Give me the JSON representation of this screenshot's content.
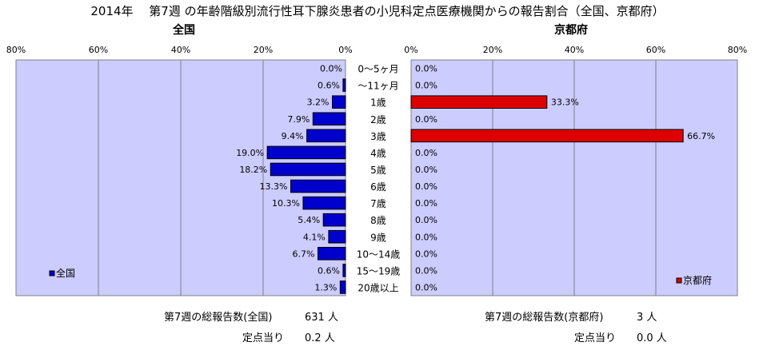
{
  "title": "2014年　 第7週 の年齢階級別流行性耳下腺炎患者の小児科定点医療機関からの報告割合（全国、京都府）",
  "colors": {
    "plot_bg": "#ccccff",
    "national_bar": "#0000cc",
    "kyoto_bar": "#dd0000",
    "grid": "#808080"
  },
  "chart_data": [
    {
      "type": "bar",
      "orientation": "horizontal",
      "direction": "right-to-left",
      "title": "全国",
      "categories": [
        "0～5ヶ月",
        "～11ヶ月",
        "1歳",
        "2歳",
        "3歳",
        "4歳",
        "5歳",
        "6歳",
        "7歳",
        "8歳",
        "9歳",
        "10～14歳",
        "15～19歳",
        "20歳以上"
      ],
      "values": [
        0.0,
        0.6,
        3.2,
        7.9,
        9.4,
        19.0,
        18.2,
        13.3,
        10.3,
        5.4,
        4.1,
        6.7,
        0.6,
        1.3
      ],
      "value_labels": [
        "0.0%",
        "0.6%",
        "3.2%",
        "7.9%",
        "9.4%",
        "19.0%",
        "18.2%",
        "13.3%",
        "10.3%",
        "5.4%",
        "4.1%",
        "6.7%",
        "0.6%",
        "1.3%"
      ],
      "xlim": [
        0,
        80
      ],
      "ticks": [
        "80%",
        "60%",
        "40%",
        "20%",
        "0%"
      ],
      "legend": "全国",
      "legend_position": "bottom-left",
      "grid": true
    },
    {
      "type": "bar",
      "orientation": "horizontal",
      "direction": "left-to-right",
      "title": "京都府",
      "categories": [
        "0～5ヶ月",
        "～11ヶ月",
        "1歳",
        "2歳",
        "3歳",
        "4歳",
        "5歳",
        "6歳",
        "7歳",
        "8歳",
        "9歳",
        "10～14歳",
        "15～19歳",
        "20歳以上"
      ],
      "values": [
        0.0,
        0.0,
        33.3,
        0.0,
        66.7,
        0.0,
        0.0,
        0.0,
        0.0,
        0.0,
        0.0,
        0.0,
        0.0,
        0.0
      ],
      "value_labels": [
        "0.0%",
        "0.0%",
        "33.3%",
        "0.0%",
        "66.7%",
        "0.0%",
        "0.0%",
        "0.0%",
        "0.0%",
        "0.0%",
        "0.0%",
        "0.0%",
        "0.0%",
        "0.0%"
      ],
      "xlim": [
        0,
        80
      ],
      "ticks": [
        "0%",
        "20%",
        "40%",
        "60%",
        "80%"
      ],
      "legend": "京都府",
      "legend_position": "bottom-right",
      "grid": true
    }
  ],
  "footer": {
    "national_total_label": "第7週の総報告数(全国)",
    "national_total_value": "631 人",
    "national_per_label": "定点当り",
    "national_per_value": "0.2 人",
    "kyoto_total_label": "第7週の総報告数(京都府)",
    "kyoto_total_value": "3 人",
    "kyoto_per_label": "定点当り",
    "kyoto_per_value": "0.0 人"
  }
}
